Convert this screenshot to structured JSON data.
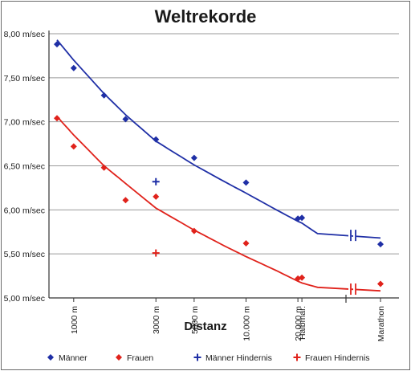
{
  "chart_data": {
    "type": "scatter",
    "title": "Weltrekorde",
    "xlabel": "Distanz",
    "ylabel": "",
    "ylim": [
      5.0,
      8.0
    ],
    "yticks": [
      "5,00 m/sec",
      "5,50 m/sec",
      "6,00 m/sec",
      "6,50 m/sec",
      "7,00 m/sec",
      "7,50 m/sec",
      "8,00 m/sec"
    ],
    "ytick_values": [
      5.0,
      5.5,
      6.0,
      6.5,
      7.0,
      7.5,
      8.0
    ],
    "xticks": [
      {
        "label": "1000 m",
        "x": 1000
      },
      {
        "label": "3000 m",
        "x": 3000
      },
      {
        "label": "5000 m",
        "x": 5000
      },
      {
        "label": "10.000 m",
        "x": 10000
      },
      {
        "label": "20.000 m",
        "x": 20000
      },
      {
        "label": "Halbmar.",
        "x": 21097
      },
      {
        "label": "Marathon",
        "x": 42195
      }
    ],
    "axis_break": true,
    "grid": true,
    "legend_position": "bottom",
    "series": [
      {
        "name": "Männer",
        "marker": "diamond",
        "color": "#1f2fa6",
        "points": [
          [
            800,
            7.88
          ],
          [
            1000,
            7.61
          ],
          [
            1500,
            7.3
          ],
          [
            2000,
            7.03
          ],
          [
            3000,
            6.8
          ],
          [
            5000,
            6.59
          ],
          [
            10000,
            6.31
          ],
          [
            20000,
            5.9
          ],
          [
            21097,
            5.91
          ],
          [
            42195,
            5.61
          ]
        ]
      },
      {
        "name": "Frauen",
        "marker": "diamond",
        "color": "#e0221b",
        "points": [
          [
            800,
            7.04
          ],
          [
            1000,
            6.72
          ],
          [
            1500,
            6.48
          ],
          [
            2000,
            6.11
          ],
          [
            3000,
            6.15
          ],
          [
            5000,
            5.76
          ],
          [
            10000,
            5.62
          ],
          [
            20000,
            5.22
          ],
          [
            21097,
            5.23
          ],
          [
            42195,
            5.16
          ]
        ]
      },
      {
        "name": "Männer Hindernis",
        "marker": "plus",
        "color": "#1f2fa6",
        "points": [
          [
            3000,
            6.32
          ]
        ]
      },
      {
        "name": "Frauen Hindernis",
        "marker": "plus",
        "color": "#e0221b",
        "points": [
          [
            3000,
            5.51
          ]
        ]
      }
    ],
    "fit_curves": [
      {
        "series": "Männer",
        "color": "#1f2fa6",
        "points": [
          [
            800,
            7.93
          ],
          [
            1000,
            7.7
          ],
          [
            1500,
            7.32
          ],
          [
            2000,
            7.08
          ],
          [
            3000,
            6.78
          ],
          [
            5000,
            6.51
          ],
          [
            7500,
            6.32
          ],
          [
            10000,
            6.19
          ],
          [
            15000,
            6.0
          ],
          [
            20000,
            5.87
          ],
          [
            21097,
            5.85
          ],
          [
            26000,
            5.73
          ],
          [
            42195,
            5.68
          ]
        ]
      },
      {
        "series": "Frauen",
        "color": "#e0221b",
        "points": [
          [
            800,
            7.06
          ],
          [
            1000,
            6.85
          ],
          [
            1500,
            6.5
          ],
          [
            2000,
            6.3
          ],
          [
            3000,
            6.02
          ],
          [
            5000,
            5.77
          ],
          [
            7500,
            5.59
          ],
          [
            10000,
            5.47
          ],
          [
            15000,
            5.31
          ],
          [
            20000,
            5.19
          ],
          [
            21097,
            5.17
          ],
          [
            26000,
            5.12
          ],
          [
            42195,
            5.08
          ]
        ]
      }
    ]
  }
}
